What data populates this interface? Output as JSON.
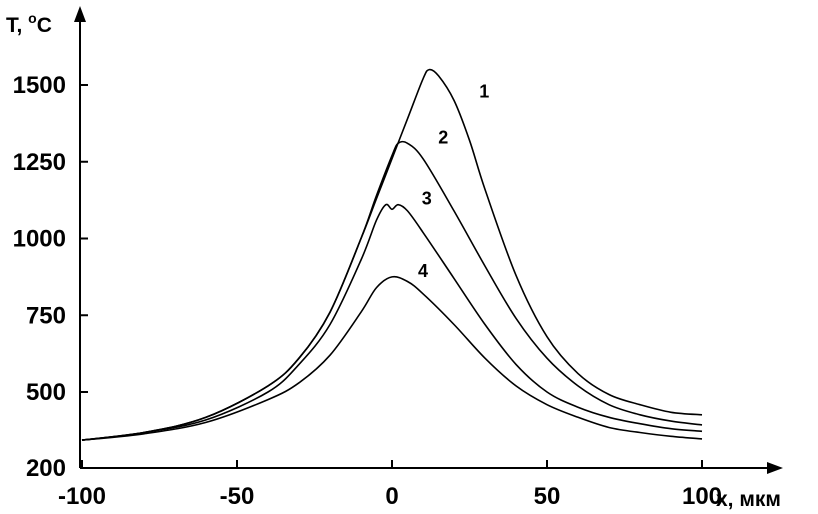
{
  "chart_data": {
    "type": "line",
    "xlabel": "x, мкм",
    "ylabel_main": "T, ",
    "ylabel_sup": "o",
    "ylabel_unit": "C",
    "xlim": [
      -100,
      100
    ],
    "ylim": [
      200,
      1750
    ],
    "grid": false,
    "x_ticks": [
      {
        "value": -100,
        "label": "-100"
      },
      {
        "value": -50,
        "label": "-50"
      },
      {
        "value": 0,
        "label": "0"
      },
      {
        "value": 50,
        "label": "50"
      },
      {
        "value": 100,
        "label": "100"
      }
    ],
    "y_ticks": [
      {
        "value": 200,
        "label": "200"
      },
      {
        "value": 500,
        "label": "500"
      },
      {
        "value": 750,
        "label": "750"
      },
      {
        "value": 1000,
        "label": "1000"
      },
      {
        "value": 1250,
        "label": "1250"
      },
      {
        "value": 1500,
        "label": "1500"
      }
    ],
    "series": [
      {
        "name": "1",
        "x": [
          -100,
          -80,
          -60,
          -40,
          -30,
          -20,
          -10,
          -5,
          0,
          5,
          10,
          12,
          15,
          20,
          25,
          30,
          40,
          50,
          60,
          70,
          80,
          90,
          100
        ],
        "y": [
          310,
          340,
          400,
          520,
          610,
          760,
          1000,
          1130,
          1260,
          1390,
          1520,
          1550,
          1530,
          1450,
          1320,
          1160,
          880,
          680,
          560,
          490,
          450,
          420,
          410
        ]
      },
      {
        "name": "2",
        "x": [
          -100,
          -80,
          -60,
          -40,
          -30,
          -20,
          -10,
          -5,
          0,
          2,
          5,
          10,
          20,
          30,
          40,
          50,
          60,
          70,
          80,
          90,
          100
        ],
        "y": [
          310,
          340,
          400,
          520,
          610,
          760,
          1000,
          1140,
          1270,
          1310,
          1310,
          1260,
          1090,
          910,
          740,
          610,
          520,
          450,
          410,
          385,
          370
        ]
      },
      {
        "name": "3",
        "x": [
          -100,
          -80,
          -60,
          -40,
          -30,
          -20,
          -10,
          -5,
          -2,
          0,
          2,
          5,
          10,
          20,
          30,
          40,
          50,
          60,
          70,
          80,
          90,
          100
        ],
        "y": [
          310,
          340,
          390,
          500,
          590,
          720,
          930,
          1060,
          1110,
          1095,
          1110,
          1090,
          1020,
          870,
          720,
          590,
          500,
          440,
          400,
          375,
          355,
          345
        ]
      },
      {
        "name": "4",
        "x": [
          -100,
          -80,
          -60,
          -40,
          -30,
          -20,
          -10,
          -5,
          0,
          5,
          10,
          20,
          30,
          40,
          50,
          60,
          70,
          80,
          90,
          100
        ],
        "y": [
          310,
          335,
          380,
          470,
          530,
          620,
          760,
          840,
          875,
          860,
          820,
          720,
          610,
          520,
          450,
          400,
          360,
          340,
          325,
          315
        ]
      }
    ]
  }
}
